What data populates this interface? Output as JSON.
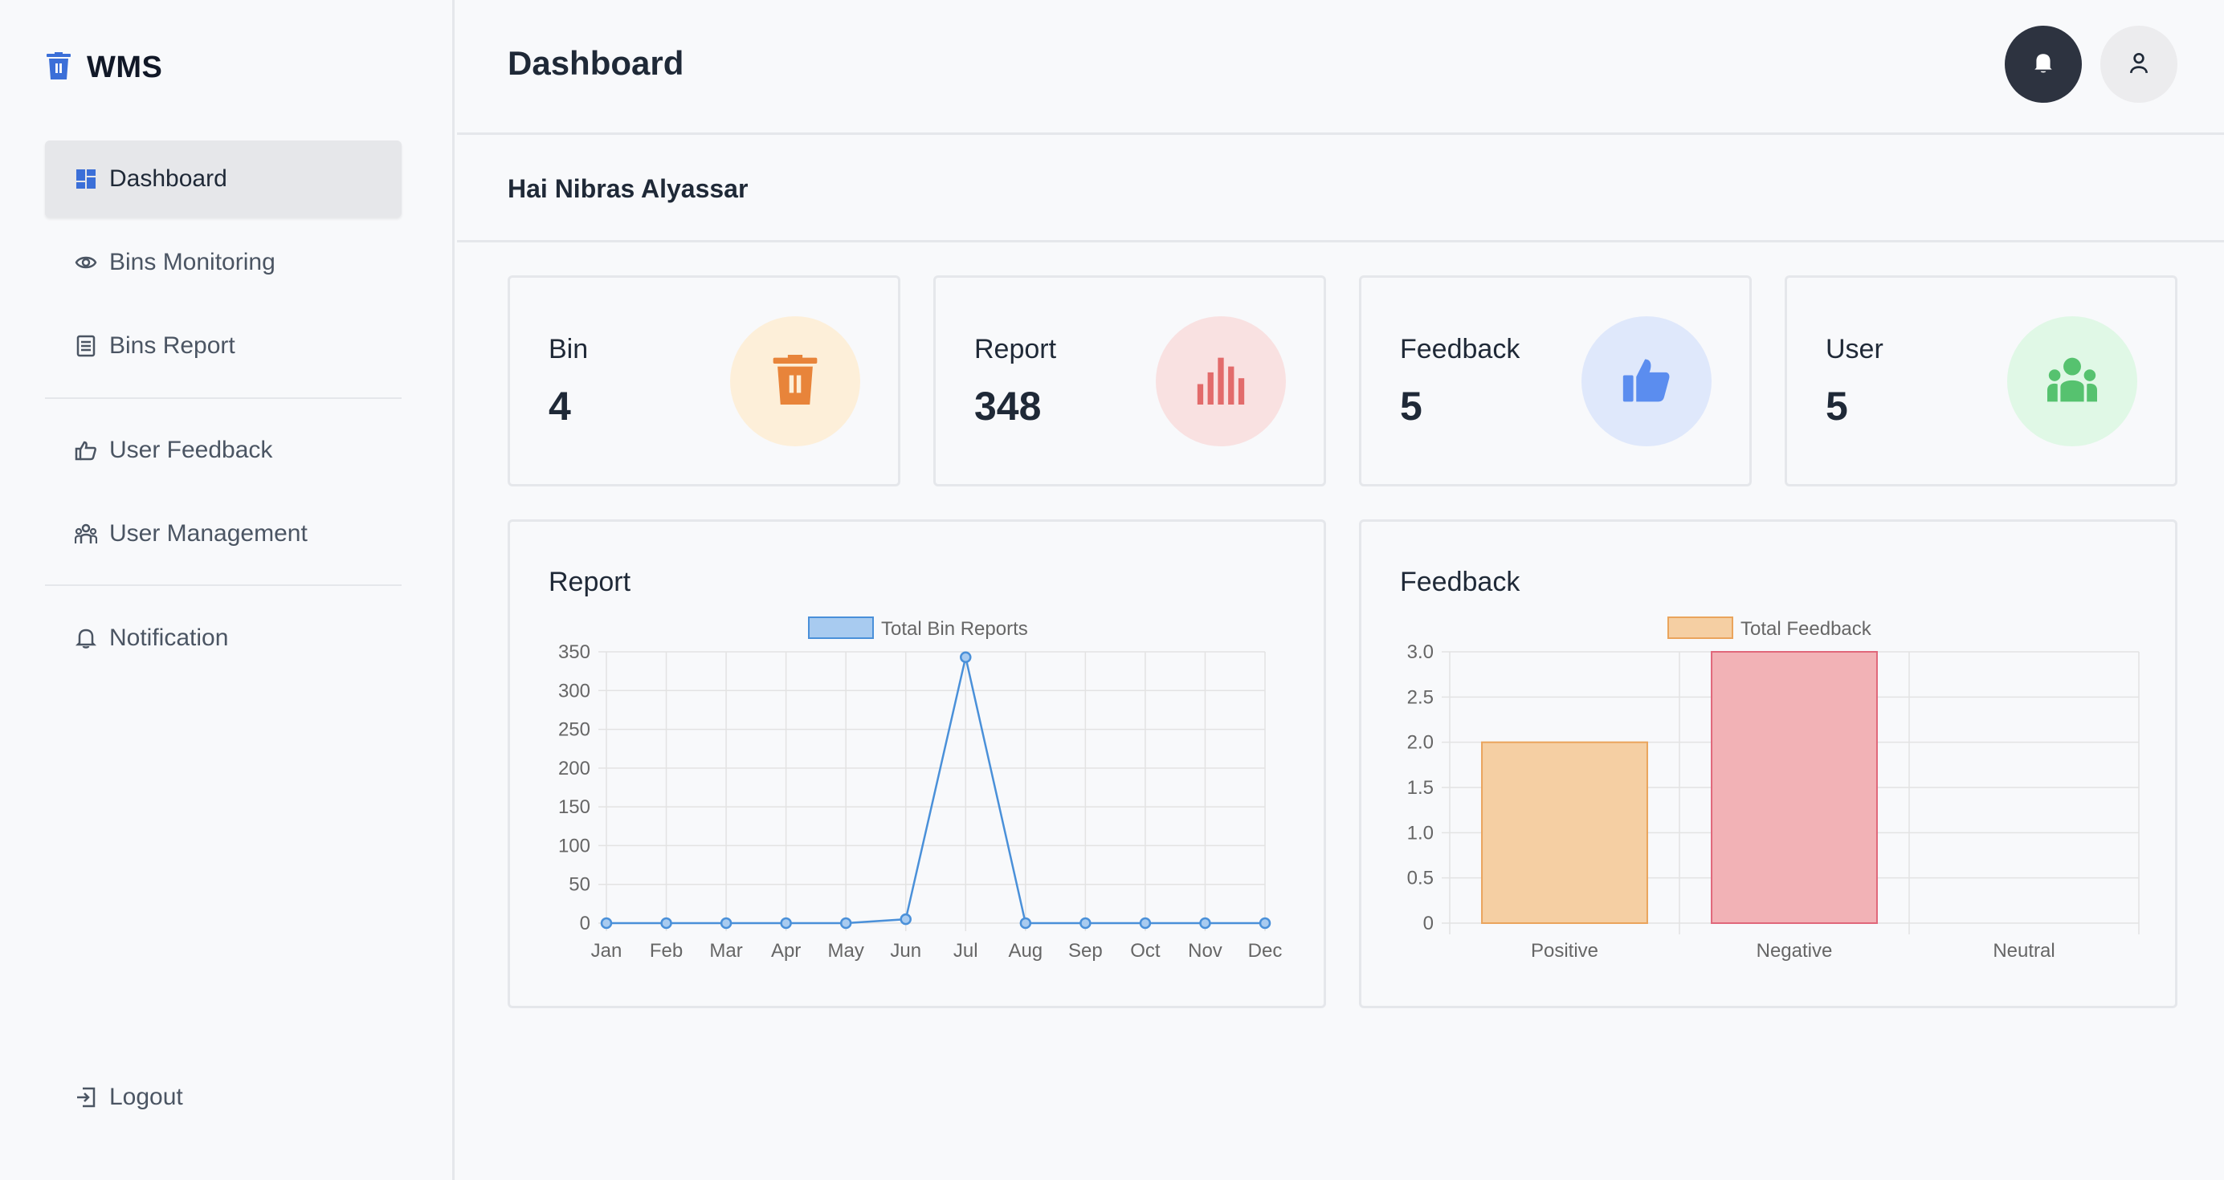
{
  "app": {
    "name": "WMS"
  },
  "sidebar": {
    "items": [
      {
        "label": "Dashboard",
        "icon": "dashboard-icon",
        "active": true
      },
      {
        "label": "Bins Monitoring",
        "icon": "eye-icon"
      },
      {
        "label": "Bins Report",
        "icon": "report-list-icon"
      },
      {
        "label": "User Feedback",
        "icon": "thumbs-up-icon"
      },
      {
        "label": "User Management",
        "icon": "users-icon"
      },
      {
        "label": "Notification",
        "icon": "bell-icon"
      }
    ],
    "logout_label": "Logout"
  },
  "header": {
    "title": "Dashboard"
  },
  "greeting": "Hai  Nibras Alyassar",
  "stats": [
    {
      "label": "Bin",
      "value": "4",
      "icon": "trash-bin-icon",
      "bg": "#fdefd9",
      "fg": "#e8843a"
    },
    {
      "label": "Report",
      "value": "348",
      "icon": "bar-chart-icon",
      "bg": "#f9e1e1",
      "fg": "#e26b6b"
    },
    {
      "label": "Feedback",
      "value": "5",
      "icon": "thumbs-up-icon",
      "bg": "#dfe8fb",
      "fg": "#5b8def"
    },
    {
      "label": "User",
      "value": "5",
      "icon": "users-icon",
      "bg": "#e0f8e6",
      "fg": "#56c26f"
    }
  ],
  "chart_data": [
    {
      "type": "line",
      "title": "Report",
      "x": [
        "Jan",
        "Feb",
        "Mar",
        "Apr",
        "May",
        "Jun",
        "Jul",
        "Aug",
        "Sep",
        "Oct",
        "Nov",
        "Dec"
      ],
      "series": [
        {
          "name": "Total Bin Reports",
          "values": [
            0,
            0,
            0,
            0,
            0,
            5,
            343,
            0,
            0,
            0,
            0,
            0
          ],
          "color": "#4a90d9",
          "fill": "#a8cbf0"
        }
      ],
      "yticks": [
        0,
        50,
        100,
        150,
        200,
        250,
        300,
        350
      ],
      "ylim": [
        0,
        350
      ],
      "grid": true,
      "legend": "top-center"
    },
    {
      "type": "bar",
      "title": "Feedback",
      "categories": [
        "Positive",
        "Negative",
        "Neutral"
      ],
      "series": [
        {
          "name": "Total Feedback",
          "values": [
            2,
            3,
            0
          ],
          "colors": [
            "#f5cfa3",
            "#f2b2b6",
            "#f5cfa3"
          ],
          "borders": [
            "#eaa45c",
            "#e0677a",
            "#eaa45c"
          ]
        }
      ],
      "yticks": [
        "0",
        "0.5",
        "1.0",
        "1.5",
        "2.0",
        "2.5",
        "3.0"
      ],
      "ylim": [
        0,
        3
      ],
      "grid": true,
      "legend": "top-center"
    }
  ]
}
